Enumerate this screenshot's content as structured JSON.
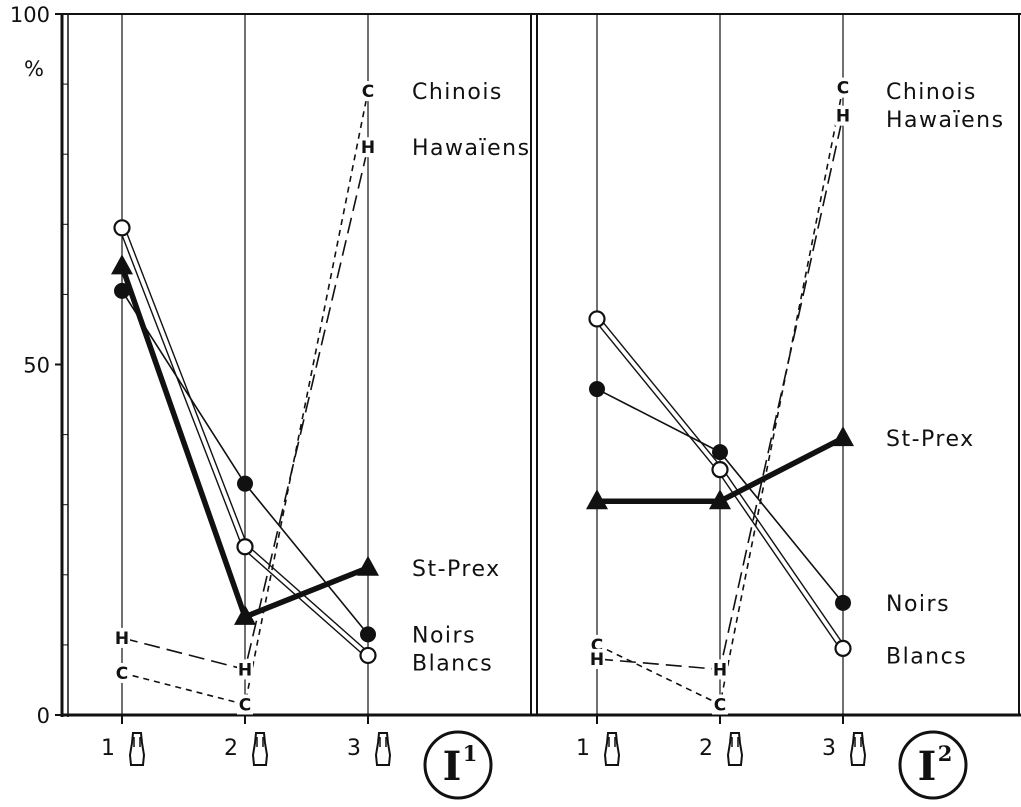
{
  "chart_data": [
    {
      "type": "line",
      "panel_label": "I",
      "panel_superscript": "1",
      "y_unit": "%",
      "ylim": [
        0,
        100
      ],
      "y_ticks": [
        "0",
        "50",
        "100"
      ],
      "categories": [
        "1",
        "2",
        "3"
      ],
      "grid": "vertical lines at each category",
      "legend": "labels at right end of lines",
      "series": [
        {
          "name": "Chinois",
          "marker": "C",
          "values": [
            6,
            1.5,
            89
          ],
          "style": "short-dash",
          "label_y": 89
        },
        {
          "name": "Hawaïens",
          "marker": "H",
          "values": [
            11,
            6.5,
            81
          ],
          "style": "long-dash",
          "label_y": 81
        },
        {
          "name": "St-Prex",
          "marker": "filled-triangle",
          "values": [
            64,
            14,
            21
          ],
          "style": "thick-solid",
          "label_y": 21
        },
        {
          "name": "Noirs",
          "marker": "filled-circle",
          "values": [
            60.5,
            33,
            11.5
          ],
          "style": "thin-solid",
          "label_y": 11.5
        },
        {
          "name": "Blancs",
          "marker": "open-circle",
          "values": [
            69.5,
            24,
            8.5
          ],
          "style": "double-line",
          "label_y": 7.5
        }
      ]
    },
    {
      "type": "line",
      "panel_label": "I",
      "panel_superscript": "2",
      "ylim": [
        0,
        100
      ],
      "categories": [
        "1",
        "2",
        "3"
      ],
      "grid": "vertical lines at each category",
      "legend": "labels at right end of lines",
      "series": [
        {
          "name": "Chinois",
          "marker": "C",
          "values": [
            10,
            1.5,
            89.5
          ],
          "style": "short-dash",
          "label_y": 89
        },
        {
          "name": "Hawaïens",
          "marker": "H",
          "values": [
            8,
            6.5,
            85.5
          ],
          "style": "long-dash",
          "label_y": 85
        },
        {
          "name": "St-Prex",
          "marker": "filled-triangle",
          "values": [
            30.5,
            30.5,
            39.5
          ],
          "style": "thick-solid",
          "label_y": 39.5
        },
        {
          "name": "Noirs",
          "marker": "filled-circle",
          "values": [
            46.5,
            37.5,
            16
          ],
          "style": "thin-solid",
          "label_y": 16
        },
        {
          "name": "Blancs",
          "marker": "open-circle",
          "values": [
            56.5,
            35,
            9.5
          ],
          "style": "double-line",
          "label_y": 8.5
        }
      ]
    }
  ]
}
